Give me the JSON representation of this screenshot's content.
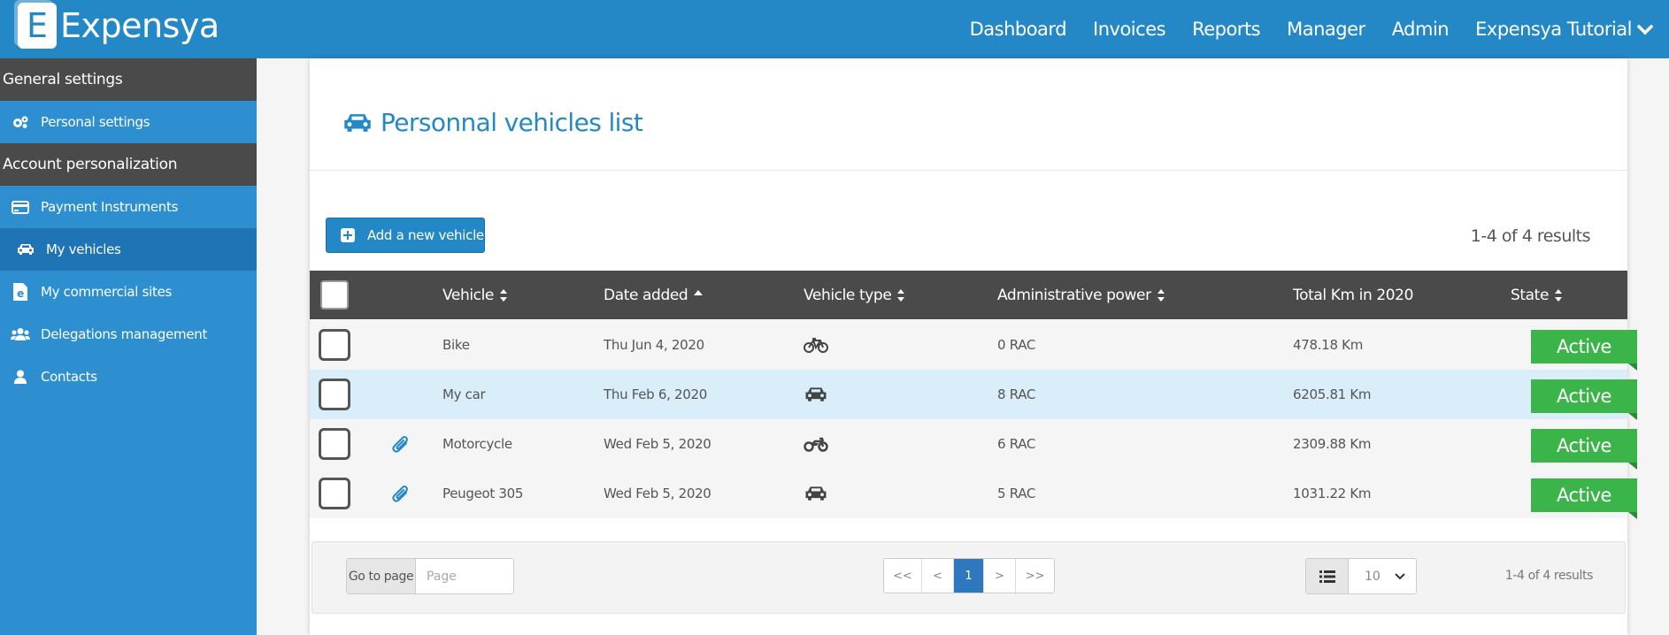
{
  "app": {
    "brand": "Expensya",
    "logo_letter": "E"
  },
  "topnav": {
    "items": [
      {
        "label": "Dashboard"
      },
      {
        "label": "Invoices"
      },
      {
        "label": "Reports"
      },
      {
        "label": "Manager"
      },
      {
        "label": "Admin"
      }
    ],
    "user_menu": "Expensya Tutorial"
  },
  "sidebar": {
    "section_general": "General settings",
    "personal_settings": "Personal settings",
    "section_account": "Account personalization",
    "items": [
      {
        "label": "Payment Instruments",
        "icon": "credit-card-icon"
      },
      {
        "label": "My vehicles",
        "icon": "car-icon",
        "active": true
      },
      {
        "label": "My commercial sites",
        "icon": "commercial-site-icon"
      },
      {
        "label": "Delegations management",
        "icon": "users-icon"
      },
      {
        "label": "Contacts",
        "icon": "user-icon"
      }
    ]
  },
  "main": {
    "title": "Personnal vehicles list",
    "add_button": "Add a new vehicle",
    "results_summary": "1-4 of 4 results",
    "table": {
      "columns": [
        "Vehicle",
        "Date added",
        "Vehicle type",
        "Administrative power",
        "Total Km in 2020",
        "State"
      ],
      "rows": [
        {
          "attachment": false,
          "vehicle": "Bike",
          "date": "Thu Jun 4, 2020",
          "type_icon": "bicycle-icon",
          "power": "0 RAC",
          "km": "478.18 Km",
          "state": "Active"
        },
        {
          "attachment": false,
          "vehicle": "My car",
          "date": "Thu Feb 6, 2020",
          "type_icon": "car-icon",
          "power": "8 RAC",
          "km": "6205.81 Km",
          "state": "Active"
        },
        {
          "attachment": true,
          "vehicle": "Motorcycle",
          "date": "Wed Feb 5, 2020",
          "type_icon": "motorcycle-icon",
          "power": "6 RAC",
          "km": "2309.88 Km",
          "state": "Active"
        },
        {
          "attachment": true,
          "vehicle": "Peugeot 305",
          "date": "Wed Feb 5, 2020",
          "type_icon": "car-icon",
          "power": "5 RAC",
          "km": "1031.22 Km",
          "state": "Active"
        }
      ]
    },
    "pagination": {
      "goto_label": "Go to page",
      "goto_placeholder": "Page",
      "first": "<<",
      "prev": "<",
      "current": "1",
      "next": ">",
      "last": ">>",
      "page_size": "10",
      "results": "1-4 of 4 results"
    }
  },
  "colors": {
    "primary": "#2588c6",
    "header_dark": "#4a4a4a",
    "active_green": "#3bb54a",
    "sidebar": "#2e8fd0"
  }
}
